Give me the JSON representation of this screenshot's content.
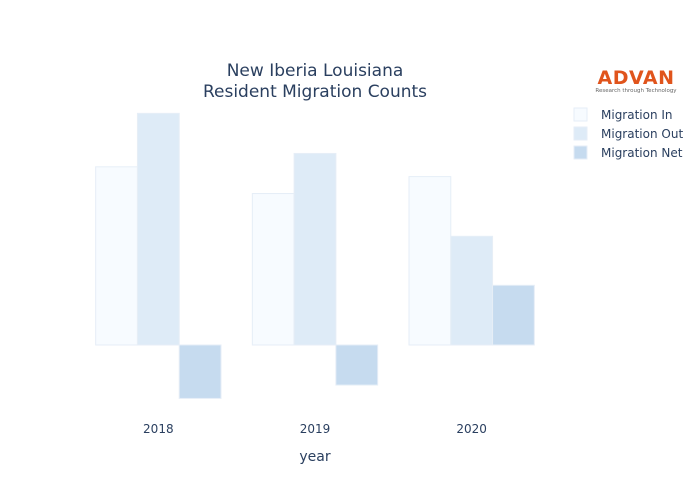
{
  "chart_data": {
    "type": "bar",
    "title_lines": [
      "New Iberia Louisiana",
      "Resident Migration Counts"
    ],
    "xlabel": "year",
    "ylabel": "",
    "categories": [
      "2018",
      "2019",
      "2020"
    ],
    "series": [
      {
        "name": "Migration In",
        "color": "#f7fbff",
        "values": [
          1000,
          850,
          945
        ]
      },
      {
        "name": "Migration Out",
        "color": "#deebf7",
        "values": [
          1300,
          1075,
          610
        ]
      },
      {
        "name": "Migration Net",
        "color": "#c6dbef",
        "values": [
          -300,
          -225,
          335
        ]
      }
    ],
    "ylim": [
      -365,
      1375
    ],
    "y_gridlines": false,
    "y_tick_labels_visible": false,
    "legend_position": "top-right"
  },
  "logo": {
    "text": "ADVAN",
    "tagline": "Research through Technology"
  }
}
